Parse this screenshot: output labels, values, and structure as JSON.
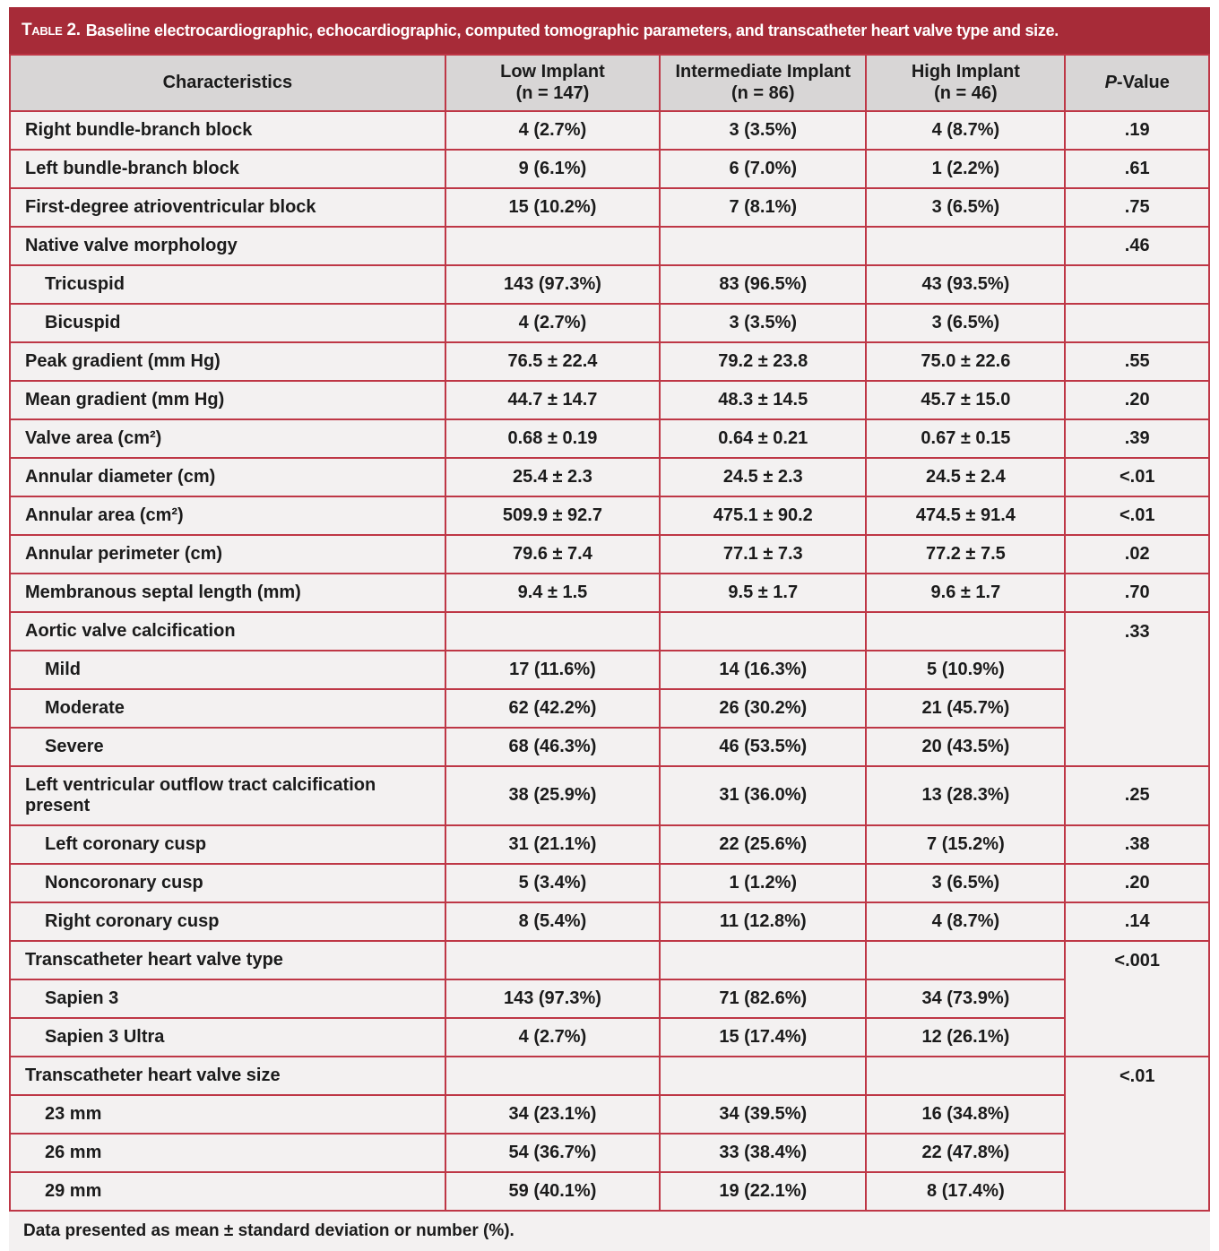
{
  "title": {
    "label": "Table 2.",
    "text": "Baseline electrocardiographic, echocardiographic, computed tomographic parameters, and transcatheter heart valve type and size."
  },
  "columns": {
    "characteristics": "Characteristics",
    "groups": [
      {
        "name": "Low Implant",
        "n": "(n = 147)"
      },
      {
        "name": "Intermediate Implant",
        "n": "(n = 86)"
      },
      {
        "name": "High Implant",
        "n": "(n = 46)"
      }
    ],
    "p_value": {
      "italic": "P",
      "rest": "-Value"
    }
  },
  "rows": [
    {
      "label": "Right bundle-branch block",
      "indent": false,
      "values": [
        "4 (2.7%)",
        "3 (3.5%)",
        "4 (8.7%)"
      ],
      "p": ".19"
    },
    {
      "label": "Left bundle-branch block",
      "indent": false,
      "values": [
        "9 (6.1%)",
        "6 (7.0%)",
        "1 (2.2%)"
      ],
      "p": ".61"
    },
    {
      "label": "First-degree atrioventricular block",
      "indent": false,
      "values": [
        "15 (10.2%)",
        "7 (8.1%)",
        "3 (6.5%)"
      ],
      "p": ".75"
    },
    {
      "label": "Native valve morphology",
      "indent": false,
      "values": [
        "",
        "",
        ""
      ],
      "p": ".46"
    },
    {
      "label": "Tricuspid",
      "indent": true,
      "values": [
        "143 (97.3%)",
        "83 (96.5%)",
        "43 (93.5%)"
      ],
      "p": ""
    },
    {
      "label": "Bicuspid",
      "indent": true,
      "values": [
        "4 (2.7%)",
        "3 (3.5%)",
        "3 (6.5%)"
      ],
      "p": ""
    },
    {
      "label": "Peak gradient (mm Hg)",
      "indent": false,
      "values": [
        "76.5 ± 22.4",
        "79.2 ± 23.8",
        "75.0 ± 22.6"
      ],
      "p": ".55"
    },
    {
      "label": "Mean gradient (mm Hg)",
      "indent": false,
      "values": [
        "44.7 ± 14.7",
        "48.3 ± 14.5",
        "45.7 ± 15.0"
      ],
      "p": ".20"
    },
    {
      "label": "Valve area (cm²)",
      "indent": false,
      "values": [
        "0.68 ± 0.19",
        "0.64 ± 0.21",
        "0.67 ± 0.15"
      ],
      "p": ".39"
    },
    {
      "label": "Annular diameter (cm)",
      "indent": false,
      "values": [
        "25.4 ± 2.3",
        "24.5 ± 2.3",
        "24.5 ± 2.4"
      ],
      "p": "<.01"
    },
    {
      "label": "Annular area (cm²)",
      "indent": false,
      "values": [
        "509.9 ± 92.7",
        "475.1 ± 90.2",
        "474.5 ± 91.4"
      ],
      "p": "<.01"
    },
    {
      "label": "Annular perimeter (cm)",
      "indent": false,
      "values": [
        "79.6 ± 7.4",
        "77.1 ± 7.3",
        "77.2 ± 7.5"
      ],
      "p": ".02"
    },
    {
      "label": "Membranous septal length (mm)",
      "indent": false,
      "values": [
        "9.4 ± 1.5",
        "9.5 ± 1.7",
        "9.6 ± 1.7"
      ],
      "p": ".70"
    },
    {
      "label": "Aortic valve calcification",
      "indent": false,
      "values": [
        "",
        "",
        ""
      ],
      "p": ".33",
      "p_rowspan": 4
    },
    {
      "label": "Mild",
      "indent": true,
      "values": [
        "17 (11.6%)",
        "14 (16.3%)",
        "5 (10.9%)"
      ],
      "p_in_span": true
    },
    {
      "label": "Moderate",
      "indent": true,
      "values": [
        "62 (42.2%)",
        "26 (30.2%)",
        "21 (45.7%)"
      ],
      "p_in_span": true
    },
    {
      "label": "Severe",
      "indent": true,
      "values": [
        "68 (46.3%)",
        "46 (53.5%)",
        "20 (43.5%)"
      ],
      "p_in_span": true
    },
    {
      "label": "Left ventricular outflow tract calcification present",
      "indent": false,
      "values": [
        "38 (25.9%)",
        "31 (36.0%)",
        "13 (28.3%)"
      ],
      "p": ".25"
    },
    {
      "label": "Left coronary cusp",
      "indent": true,
      "values": [
        "31 (21.1%)",
        "22 (25.6%)",
        "7 (15.2%)"
      ],
      "p": ".38"
    },
    {
      "label": "Noncoronary cusp",
      "indent": true,
      "values": [
        "5 (3.4%)",
        "1 (1.2%)",
        "3 (6.5%)"
      ],
      "p": ".20"
    },
    {
      "label": "Right coronary cusp",
      "indent": true,
      "values": [
        "8 (5.4%)",
        "11 (12.8%)",
        "4 (8.7%)"
      ],
      "p": ".14"
    },
    {
      "label": "Transcatheter heart valve type",
      "indent": false,
      "values": [
        "",
        "",
        ""
      ],
      "p": "<.001",
      "p_rowspan": 3
    },
    {
      "label": "Sapien 3",
      "indent": true,
      "values": [
        "143 (97.3%)",
        "71 (82.6%)",
        "34 (73.9%)"
      ],
      "p_in_span": true
    },
    {
      "label": "Sapien 3 Ultra",
      "indent": true,
      "values": [
        "4 (2.7%)",
        "15 (17.4%)",
        "12 (26.1%)"
      ],
      "p_in_span": true
    },
    {
      "label": "Transcatheter heart valve size",
      "indent": false,
      "values": [
        "",
        "",
        ""
      ],
      "p": "<.01",
      "p_rowspan": 4
    },
    {
      "label": "23 mm",
      "indent": true,
      "values": [
        "34 (23.1%)",
        "34 (39.5%)",
        "16 (34.8%)"
      ],
      "p_in_span": true
    },
    {
      "label": "26 mm",
      "indent": true,
      "values": [
        "54 (36.7%)",
        "33 (38.4%)",
        "22 (47.8%)"
      ],
      "p_in_span": true
    },
    {
      "label": "29 mm",
      "indent": true,
      "values": [
        "59 (40.1%)",
        "19 (22.1%)",
        "8 (17.4%)"
      ],
      "p_in_span": true
    }
  ],
  "footnote": "Data presented as mean ± standard deviation or number (%).",
  "colors": {
    "title_bar": "#A72B38",
    "border": "#BE3746",
    "column_header_bg": "#D8D6D6",
    "row_bg": "#F3F1F1",
    "text": "#1B1B1B",
    "title_text": "#FFFFFF"
  }
}
